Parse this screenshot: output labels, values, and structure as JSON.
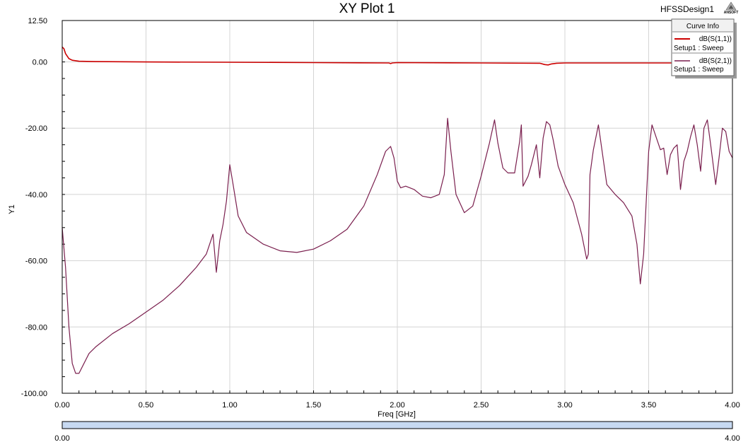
{
  "header": {
    "design_name": "HFSSDesign1",
    "logo_text": "ANSOFT"
  },
  "legend": {
    "title": "Curve Info",
    "entries": [
      {
        "name": "dB(S(1,1))",
        "sub": "Setup1 : Sweep",
        "color": "#cc0000"
      },
      {
        "name": "dB(S(2,1))",
        "sub": "Setup1 : Sweep",
        "color": "#7a1f4e"
      }
    ]
  },
  "slider": {
    "min_label": "0.00",
    "max_label": "4.00",
    "color": "#c7d9f1"
  },
  "chart_data": {
    "type": "line",
    "title": "XY Plot 1",
    "xlabel": "Freq [GHz]",
    "ylabel": "Y1",
    "xlim": [
      0,
      4
    ],
    "ylim": [
      -100,
      12.5
    ],
    "grid": true,
    "legend_position": "top-right",
    "xticks": [
      0,
      0.5,
      1.0,
      1.5,
      2.0,
      2.5,
      3.0,
      3.5,
      4.0
    ],
    "xtick_labels": [
      "0.00",
      "0.50",
      "1.00",
      "1.50",
      "2.00",
      "2.50",
      "3.00",
      "3.50",
      "4.00"
    ],
    "yticks": [
      12.5,
      0,
      -20,
      -40,
      -60,
      -80,
      -100
    ],
    "ytick_labels": [
      "12.50",
      "0.00",
      "-20.00",
      "-40.00",
      "-60.00",
      "-80.00",
      "-100.00"
    ],
    "series": [
      {
        "name": "dB(S(1,1))",
        "color": "#cc0000",
        "x": [
          0,
          0.01,
          0.02,
          0.04,
          0.06,
          0.1,
          0.2,
          0.5,
          1.0,
          1.5,
          1.95,
          1.96,
          1.97,
          2.0,
          2.5,
          2.85,
          2.88,
          2.9,
          2.92,
          2.95,
          3.0,
          3.5,
          4.0
        ],
        "y": [
          4.5,
          4.0,
          2.5,
          1.0,
          0.5,
          0.2,
          0.1,
          0.0,
          -0.1,
          -0.2,
          -0.3,
          -0.5,
          -0.3,
          -0.2,
          -0.3,
          -0.4,
          -0.8,
          -0.9,
          -0.6,
          -0.4,
          -0.3,
          -0.3,
          -0.3
        ]
      },
      {
        "name": "dB(S(2,1))",
        "color": "#7a1f4e",
        "x": [
          0.0,
          0.02,
          0.04,
          0.06,
          0.08,
          0.1,
          0.13,
          0.16,
          0.2,
          0.3,
          0.4,
          0.5,
          0.6,
          0.7,
          0.8,
          0.86,
          0.9,
          0.92,
          0.94,
          0.96,
          0.98,
          1.0,
          1.02,
          1.05,
          1.1,
          1.2,
          1.3,
          1.4,
          1.5,
          1.6,
          1.7,
          1.8,
          1.88,
          1.93,
          1.96,
          1.98,
          2.0,
          2.02,
          2.05,
          2.1,
          2.15,
          2.2,
          2.25,
          2.28,
          2.3,
          2.32,
          2.35,
          2.4,
          2.45,
          2.5,
          2.55,
          2.58,
          2.6,
          2.63,
          2.66,
          2.7,
          2.73,
          2.74,
          2.75,
          2.78,
          2.8,
          2.83,
          2.85,
          2.87,
          2.89,
          2.91,
          2.93,
          2.96,
          3.0,
          3.05,
          3.1,
          3.13,
          3.14,
          3.15,
          3.17,
          3.2,
          3.25,
          3.3,
          3.35,
          3.4,
          3.43,
          3.45,
          3.47,
          3.5,
          3.52,
          3.55,
          3.57,
          3.59,
          3.61,
          3.63,
          3.65,
          3.67,
          3.69,
          3.71,
          3.73,
          3.75,
          3.77,
          3.79,
          3.81,
          3.83,
          3.85,
          3.87,
          3.9,
          3.92,
          3.94,
          3.96,
          3.98,
          4.0
        ],
        "y": [
          -50.0,
          -62.0,
          -80.0,
          -91.0,
          -94.0,
          -94.0,
          -91.0,
          -88.0,
          -86.0,
          -82.0,
          -79.0,
          -75.5,
          -72.0,
          -67.5,
          -62.0,
          -58.0,
          -52.0,
          -63.5,
          -54.0,
          -49.0,
          -42.0,
          -31.0,
          -37.0,
          -46.5,
          -51.5,
          -55.0,
          -57.0,
          -57.5,
          -56.5,
          -54.0,
          -50.5,
          -43.5,
          -34.0,
          -27.0,
          -25.5,
          -29.0,
          -36.0,
          -38.0,
          -37.5,
          -38.5,
          -40.5,
          -41.0,
          -40.0,
          -34.0,
          -17.0,
          -27.0,
          -40.0,
          -45.5,
          -43.5,
          -34.5,
          -24.5,
          -17.5,
          -24.5,
          -32.0,
          -33.5,
          -33.5,
          -24.0,
          -19.0,
          -37.5,
          -34.5,
          -31.0,
          -25.0,
          -35.0,
          -23.0,
          -18.0,
          -19.0,
          -23.5,
          -31.5,
          -37.0,
          -42.5,
          -52.0,
          -59.5,
          -58.0,
          -34.0,
          -26.5,
          -19.0,
          -37.0,
          -40.0,
          -42.5,
          -46.5,
          -55.0,
          -67.0,
          -58.0,
          -27.0,
          -19.0,
          -23.5,
          -26.5,
          -26.0,
          -34.0,
          -28.0,
          -26.0,
          -25.0,
          -38.5,
          -30.0,
          -27.0,
          -22.5,
          -19.0,
          -25.0,
          -33.0,
          -20.0,
          -17.5,
          -25.0,
          -37.0,
          -29.0,
          -20.0,
          -21.0,
          -27.0,
          -29.0
        ]
      }
    ]
  }
}
